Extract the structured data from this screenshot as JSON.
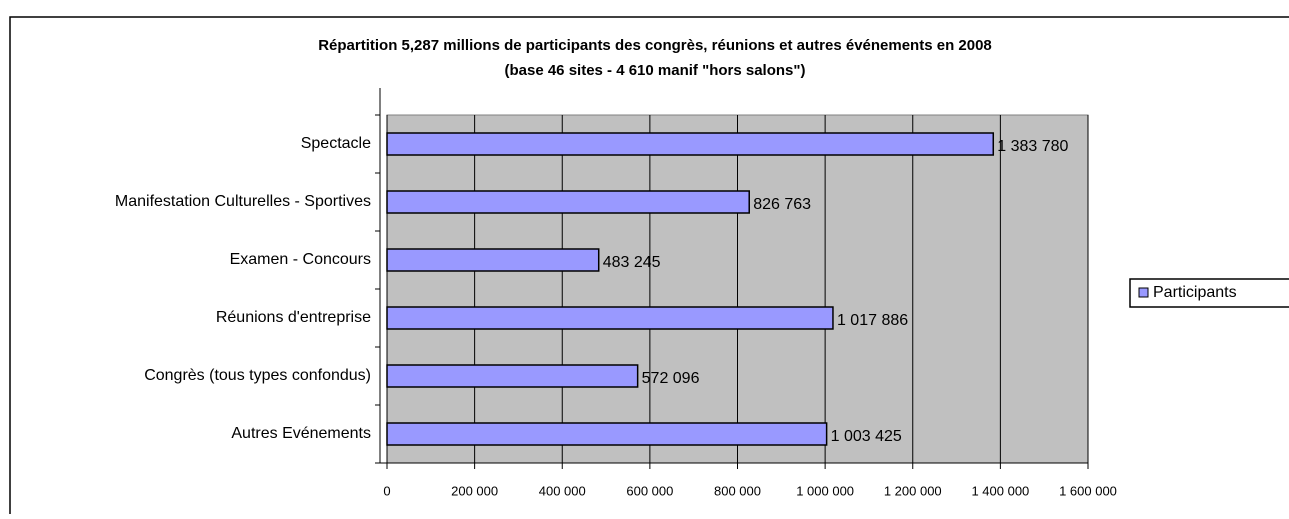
{
  "chart_data": {
    "type": "bar",
    "orientation": "horizontal",
    "title": "Répartition 5,287 millions de participants des congrès, réunions et autres événements en 2008",
    "subtitle": "(base 46 sites - 4 610 manif \"hors salons\")",
    "categories": [
      "Spectacle",
      "Manifestation Culturelles - Sportives",
      "Examen - Concours",
      "Réunions d'entreprise",
      "Congrès (tous types confondus)",
      "Autres Evénements"
    ],
    "series": [
      {
        "name": "Participants",
        "color": "#9999ff",
        "values": [
          1383780,
          826763,
          483245,
          1017886,
          572096,
          1003425
        ],
        "value_labels": [
          "1 383 780",
          "826 763",
          "483 245",
          "1 017 886",
          "572 096",
          "1 003 425"
        ]
      }
    ],
    "xlim": [
      0,
      1600000
    ],
    "xticks": [
      0,
      {
        "value": 200000,
        "label": "200 000"
      },
      {
        "value": 400000,
        "label": "400 000"
      },
      {
        "value": 600000,
        "label": "600 000"
      },
      {
        "value": 800000,
        "label": "800 000"
      },
      {
        "value": 1000000,
        "label": "1 000 000"
      },
      {
        "value": 1200000,
        "label": "1 200 000"
      },
      {
        "value": 1400000,
        "label": "1 400 000"
      },
      {
        "value": 1600000,
        "label": "1 600 000"
      }
    ],
    "grid": true,
    "plot_background": "#c0c0c0",
    "legend": "right"
  }
}
